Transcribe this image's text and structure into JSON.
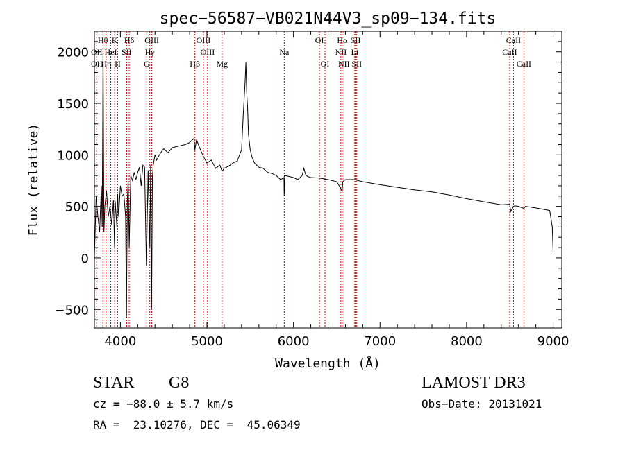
{
  "chart_data": {
    "type": "line",
    "title": "spec−56587−VB021N44V3_sp09−134.fits",
    "xlabel": "Wavelength (Å)",
    "ylabel": "Flux (relative)",
    "xlim": [
      3700,
      9100
    ],
    "ylim": [
      -680,
      2200
    ],
    "x_ticks": [
      4000,
      5000,
      6000,
      7000,
      8000,
      9000
    ],
    "y_ticks": [
      -500,
      0,
      500,
      1000,
      1500,
      2000
    ],
    "series": [
      {
        "name": "spectrum",
        "x": [
          3700,
          3720,
          3740,
          3760,
          3780,
          3790,
          3800,
          3810,
          3820,
          3840,
          3860,
          3880,
          3900,
          3920,
          3933,
          3940,
          3960,
          3968,
          3980,
          4000,
          4020,
          4040,
          4060,
          4070,
          4080,
          4090,
          4102,
          4120,
          4140,
          4160,
          4180,
          4200,
          4220,
          4240,
          4260,
          4280,
          4300,
          4320,
          4340,
          4350,
          4360,
          4370,
          4380,
          4400,
          4420,
          4450,
          4500,
          4550,
          4600,
          4650,
          4700,
          4750,
          4800,
          4850,
          4861,
          4880,
          4900,
          4950,
          5000,
          5050,
          5100,
          5150,
          5175,
          5200,
          5250,
          5300,
          5350,
          5400,
          5420,
          5440,
          5450,
          5460,
          5470,
          5480,
          5500,
          5520,
          5550,
          5600,
          5650,
          5700,
          5750,
          5800,
          5850,
          5890,
          5893,
          5900,
          5950,
          6000,
          6050,
          6100,
          6120,
          6140,
          6160,
          6200,
          6300,
          6400,
          6500,
          6563,
          6570,
          6600,
          6700,
          6800,
          6900,
          7000,
          7200,
          7400,
          7600,
          7800,
          8000,
          8200,
          8400,
          8498,
          8510,
          8542,
          8560,
          8600,
          8662,
          8680,
          8800,
          8900,
          8960,
          8990,
          9000
        ],
        "y": [
          10,
          600,
          400,
          250,
          700,
          300,
          2000,
          250,
          500,
          650,
          400,
          500,
          320,
          560,
          100,
          550,
          300,
          620,
          400,
          700,
          600,
          620,
          400,
          -580,
          560,
          760,
          100,
          800,
          750,
          830,
          760,
          830,
          880,
          700,
          900,
          880,
          -80,
          850,
          100,
          900,
          -500,
          780,
          900,
          1000,
          950,
          1000,
          1060,
          1020,
          1070,
          1080,
          1090,
          1100,
          1120,
          1160,
          1050,
          1150,
          1100,
          1000,
          920,
          950,
          870,
          900,
          840,
          870,
          890,
          920,
          940,
          1050,
          1400,
          1700,
          1900,
          1600,
          1450,
          1200,
          1050,
          980,
          920,
          880,
          870,
          830,
          820,
          800,
          760,
          780,
          600,
          800,
          790,
          780,
          760,
          800,
          870,
          810,
          790,
          780,
          775,
          760,
          740,
          650,
          740,
          760,
          760,
          740,
          725,
          710,
          685,
          660,
          640,
          610,
          575,
          545,
          515,
          520,
          450,
          500,
          505,
          500,
          480,
          500,
          485,
          470,
          460,
          300,
          60
        ]
      }
    ],
    "line_markers": [
      {
        "label": "Hθ",
        "x": 3798,
        "row": 1
      },
      {
        "label": "K",
        "x": 3934,
        "row": 1
      },
      {
        "label": "Hδ",
        "x": 4102,
        "row": 1
      },
      {
        "label": "OIII",
        "x": 4363,
        "row": 1
      },
      {
        "label": "OIII",
        "x": 4959,
        "row": 1
      },
      {
        "label": "OI",
        "x": 6300,
        "row": 1
      },
      {
        "label": "Hα",
        "x": 6563,
        "row": 1
      },
      {
        "label": "SII",
        "x": 6717,
        "row": 1
      },
      {
        "label": "CaII",
        "x": 8542,
        "row": 1
      },
      {
        "label": "OII",
        "x": 3727,
        "row": 2
      },
      {
        "label": "HeI",
        "x": 3889,
        "row": 2
      },
      {
        "label": "SII",
        "x": 4072,
        "row": 2
      },
      {
        "label": "Hγ",
        "x": 4340,
        "row": 2
      },
      {
        "label": "OIII",
        "x": 5007,
        "row": 2
      },
      {
        "label": "Na",
        "x": 5893,
        "row": 2
      },
      {
        "label": "NII",
        "x": 6548,
        "row": 2
      },
      {
        "label": "Li",
        "x": 6708,
        "row": 2
      },
      {
        "label": "CaII",
        "x": 8498,
        "row": 2
      },
      {
        "label": "OII",
        "x": 3727,
        "row": 3
      },
      {
        "label": "Hη",
        "x": 3835,
        "row": 3
      },
      {
        "label": "H",
        "x": 3968,
        "row": 3
      },
      {
        "label": "G",
        "x": 4304,
        "row": 3
      },
      {
        "label": "Hβ",
        "x": 4861,
        "row": 3
      },
      {
        "label": "Mg",
        "x": 5175,
        "row": 3
      },
      {
        "label": "OI",
        "x": 6364,
        "row": 3
      },
      {
        "label": "NII",
        "x": 6583,
        "row": 3
      },
      {
        "label": "SII",
        "x": 6731,
        "row": 3
      },
      {
        "label": "CaII",
        "x": 8662,
        "row": 3
      }
    ],
    "marker_color": "#c00000"
  },
  "info": {
    "class": "STAR",
    "subclass": "G8",
    "survey": "LAMOST DR3",
    "cz": "cz = −88.0 ± 5.7 km/s",
    "obs_date": "Obs−Date: 20131021",
    "coords": "RA =  23.10276, DEC =  45.06349"
  }
}
